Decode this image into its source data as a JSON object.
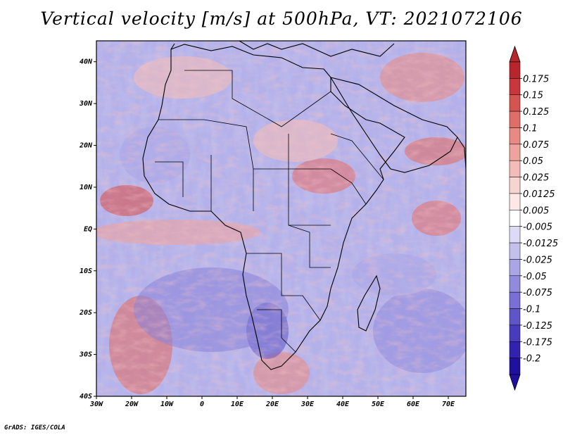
{
  "title": "Vertical velocity [m/s] at 500hPa, VT: 2021072106",
  "footer": "GrADS: IGES/COLA",
  "map": {
    "lat_labels": [
      "40N",
      "30N",
      "20N",
      "10N",
      "EQ",
      "10S",
      "20S",
      "30S",
      "40S"
    ],
    "lon_labels": [
      "30W",
      "20W",
      "10W",
      "0",
      "10E",
      "20E",
      "30E",
      "40E",
      "50E",
      "60E",
      "70E"
    ],
    "lon_range": [
      -30,
      75
    ],
    "lat_range": [
      -40,
      45
    ]
  },
  "colorbar": {
    "levels": [
      "0.175",
      "0.15",
      "0.125",
      "0.1",
      "0.075",
      "0.05",
      "0.025",
      "0.0125",
      "0.005",
      "-0.005",
      "-0.0125",
      "-0.025",
      "-0.05",
      "-0.075",
      "-0.1",
      "-0.125",
      "-0.175",
      "-0.2"
    ],
    "colors": [
      "#b8262d",
      "#c8373c",
      "#d6544f",
      "#e06e68",
      "#e88a84",
      "#efa39e",
      "#f4bcb8",
      "#f8d4d1",
      "#fce9e7",
      "#ffffff",
      "#dcdaf5",
      "#c4c0ee",
      "#aba5e6",
      "#928add",
      "#7a6fd4",
      "#5f55c8",
      "#483cbd",
      "#3322b0",
      "#2010a0"
    ]
  }
}
